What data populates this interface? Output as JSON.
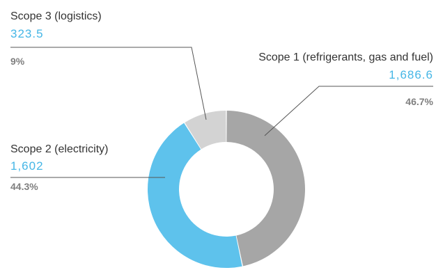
{
  "chart_data": {
    "type": "pie",
    "donut": true,
    "title": "",
    "slices": [
      {
        "label": "Scope 1 (refrigerants, gas and fuel)",
        "value": 1686.6,
        "value_text": "1,686.6",
        "percent_text": "46.7%",
        "color": "#a6a6a6"
      },
      {
        "label": "Scope 2 (electricity)",
        "value": 1602,
        "value_text": "1,602",
        "percent_text": "44.3%",
        "color": "#5ec2ec"
      },
      {
        "label": "Scope 3 (logistics)",
        "value": 323.5,
        "value_text": "323.5",
        "percent_text": "9%",
        "color": "#d3d3d3"
      }
    ],
    "value_label_color": "#45b6e6",
    "leader_line_color": "#555555"
  }
}
